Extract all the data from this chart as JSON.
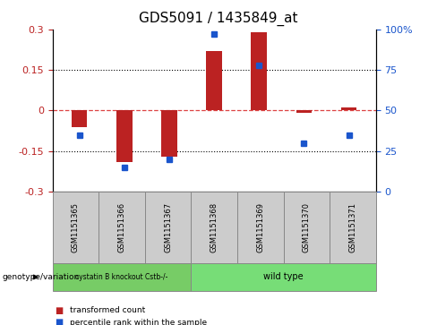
{
  "title": "GDS5091 / 1435849_at",
  "samples": [
    "GSM1151365",
    "GSM1151366",
    "GSM1151367",
    "GSM1151368",
    "GSM1151369",
    "GSM1151370",
    "GSM1151371"
  ],
  "transformed_count": [
    -0.06,
    -0.19,
    -0.17,
    0.22,
    0.29,
    -0.01,
    0.01
  ],
  "percentile_rank": [
    35,
    15,
    20,
    97,
    78,
    30,
    35
  ],
  "ylim": [
    -0.3,
    0.3
  ],
  "yticks_left": [
    -0.3,
    -0.15,
    0,
    0.15,
    0.3
  ],
  "yticks_right": [
    0,
    25,
    50,
    75,
    100
  ],
  "bar_color": "#bb2222",
  "dot_color": "#1a55cc",
  "zero_line_color": "#dd4444",
  "dot_line_color": "#dd4444",
  "grid_color": "#000000",
  "bg_color": "#ffffff",
  "group1_label": "cystatin B knockout Cstb-/-",
  "group2_label": "wild type",
  "group1_n": 3,
  "group2_n": 4,
  "group1_color": "#77cc66",
  "group2_color": "#77dd77",
  "legend_bar_label": "transformed count",
  "legend_dot_label": "percentile rank within the sample",
  "genotype_label": "genotype/variation",
  "bar_width": 0.35,
  "sample_box_color": "#cccccc",
  "title_fontsize": 11,
  "tick_fontsize": 8,
  "label_fontsize": 7,
  "sample_fontsize": 6
}
